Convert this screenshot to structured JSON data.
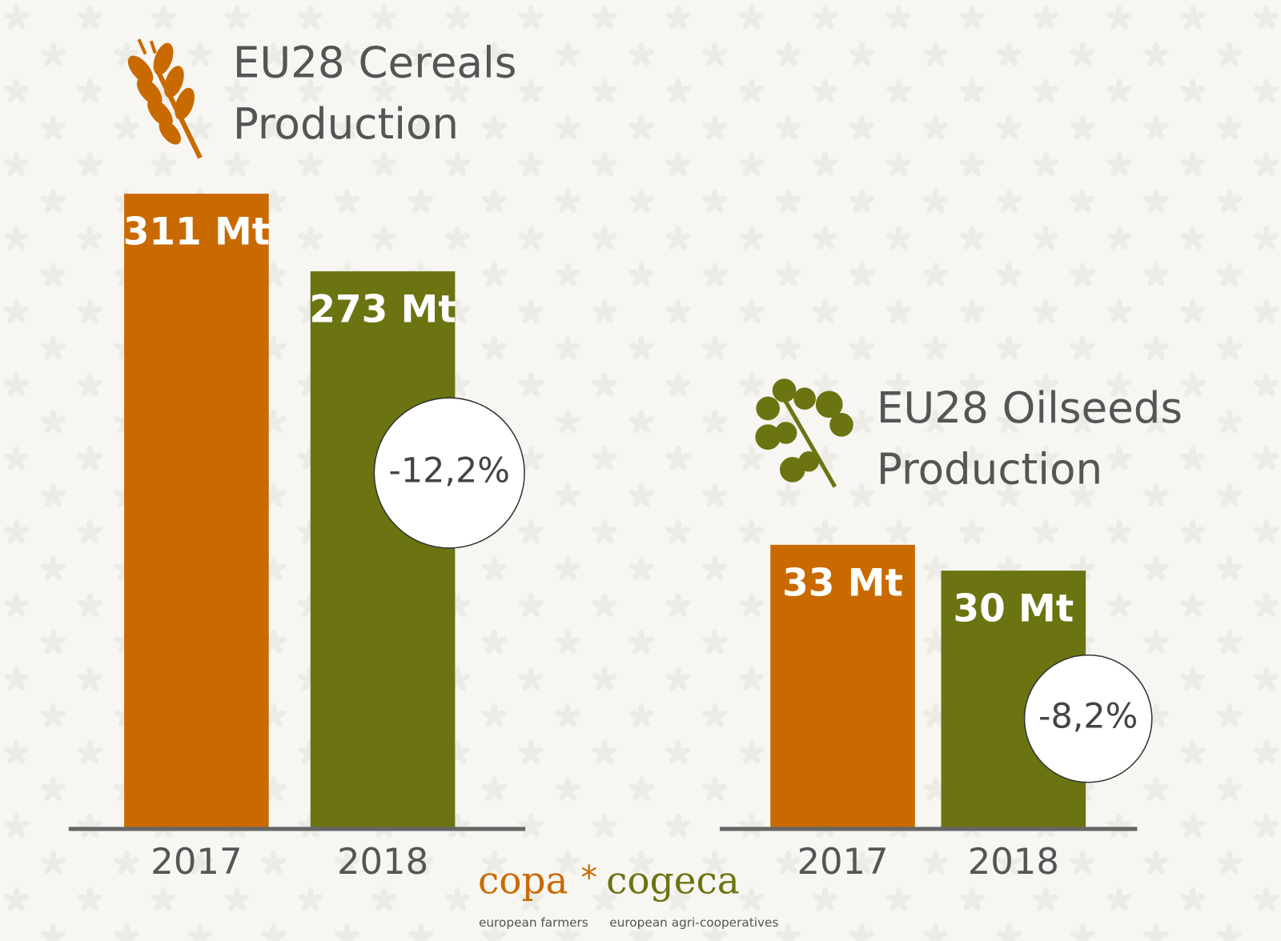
{
  "chart_data": [
    {
      "type": "bar",
      "title": [
        "EU28 Cereals",
        "Production"
      ],
      "categories": [
        "2017",
        "2018"
      ],
      "series": [
        {
          "values": [
            311,
            273
          ],
          "value_labels": [
            "311 Mt",
            "273 Mt"
          ],
          "colors": [
            "#c96a00",
            "#6b7411"
          ]
        }
      ],
      "annotation": "-12,2%"
    },
    {
      "type": "bar",
      "title": [
        "EU28 Oilseeds",
        "Production"
      ],
      "categories": [
        "2017",
        "2018"
      ],
      "series": [
        {
          "values": [
            33,
            30
          ],
          "value_labels": [
            "33 Mt",
            "30 Mt"
          ],
          "colors": [
            "#c96a00",
            "#6b7411"
          ]
        }
      ],
      "annotation": "-8,2%"
    }
  ],
  "logo": {
    "left": "copa",
    "right": "cogeca",
    "left_caption": "european farmers",
    "right_caption": "european agri-cooperatives"
  }
}
